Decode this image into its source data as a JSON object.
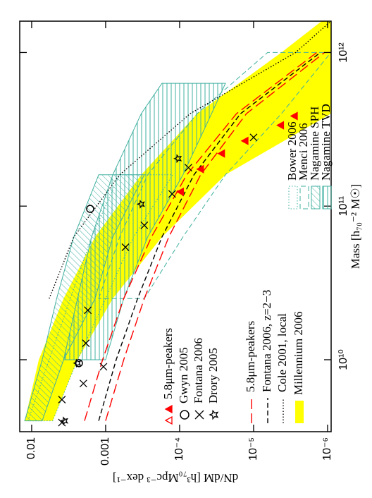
{
  "chart_data": {
    "type": "scatter",
    "xlabel": "Mass [h₇₀⁻² M☉]",
    "ylabel": "dN/dM [h³₇₀Mpc⁻³ dex⁻¹]",
    "xscale": "log",
    "yscale": "log",
    "xlim": [
      3400000000.0,
      1600000000000.0
    ],
    "ylim": [
      8.95e-07,
      0.0145
    ],
    "xticks": [
      {
        "value": 10000000000.0,
        "label": "10¹⁰"
      },
      {
        "value": 100000000000.0,
        "label": "10¹¹"
      },
      {
        "value": 1000000000000.0,
        "label": "10¹²"
      }
    ],
    "yticks": [
      0.01,
      0.001,
      {
        "value": 0.0001,
        "label": "10⁻⁴"
      },
      {
        "value": 1e-05,
        "label": "10⁻⁵"
      },
      {
        "value": 1e-06,
        "label": "10⁻⁶"
      }
    ],
    "series": [
      {
        "name": "5.8μm-peakers",
        "type": "scatter",
        "marker": "triangle",
        "color": "#ff0000",
        "x": [
          124000000000.0,
          174000000000.0,
          220000000000.0,
          266000000000.0,
          336000000000.0,
          386000000000.0
        ],
        "values": [
          9.7e-05,
          5.2e-05,
          2.7e-05,
          1.3e-05,
          4.3e-06,
          2.8e-06
        ]
      },
      {
        "name": "Gwyn 2005",
        "type": "scatter",
        "marker": "circle",
        "color": "#000000",
        "x": [
          9500000000.0,
          96000000000.0
        ],
        "values": [
          0.0023,
          0.00162
        ]
      },
      {
        "name": "Fontana 2006",
        "type": "scatter",
        "marker": "cross",
        "color": "#000000",
        "x": [
          3900000000.0,
          5500000000.0,
          7000000000.0,
          9000000000.0,
          12800000000.0,
          21000000000.0,
          54000000000.0,
          75000000000.0,
          120000000000.0,
          178000000000.0,
          280000000000.0
        ],
        "values": [
          0.0039,
          0.0039,
          0.002,
          0.00107,
          0.00185,
          0.00174,
          0.00054,
          0.0003,
          0.000126,
          7.6e-05,
          1e-05
        ]
      },
      {
        "name": "Drory 2005",
        "type": "scatter",
        "marker": "star",
        "color": "#000000",
        "x": [
          4000000000.0,
          9500000000.0,
          103000000000.0,
          204000000000.0
        ],
        "values": [
          0.0036,
          0.0024,
          0.00033,
          0.000105
        ]
      },
      {
        "name": "5.8μm-peakers",
        "type": "line",
        "dash": "long",
        "color": "#ff0000",
        "x": [
          4000000000.0,
          10000000000.0,
          25000000000.0,
          63000000000.0,
          160000000000.0,
          400000000000.0,
          1000000000000.0
        ],
        "values": [
          0.00193,
          0.0011,
          0.00057,
          0.00024,
          8e-05,
          1.7e-05,
          1.4e-06
        ]
      },
      {
        "type": "line",
        "dash": "long",
        "color": "#ff0000",
        "x": [
          4000000000.0,
          10000000000.0,
          25000000000.0,
          63000000000.0,
          160000000000.0,
          400000000000.0,
          1000000000000.0
        ],
        "values": [
          0.001,
          0.00057,
          0.0003,
          0.00014,
          5.2e-05,
          1.25e-05,
          1.1e-06
        ]
      },
      {
        "name": "Fontana 2006, z=2−3",
        "type": "line",
        "dash": "dashed",
        "color": "#000000",
        "x": [
          4000000000.0,
          10000000000.0,
          25000000000.0,
          63000000000.0,
          160000000000.0,
          400000000000.0,
          1000000000000.0
        ],
        "values": [
          0.00124,
          0.00072,
          0.00037,
          0.000173,
          6.4e-05,
          1.5e-05,
          1.25e-06
        ]
      },
      {
        "name": "Cole 2001, local",
        "type": "line",
        "dash": "dotted",
        "color": "#000000",
        "x": [
          25000000000.0,
          63000000000.0,
          160000000000.0,
          400000000000.0,
          1000000000000.0,
          1600000000000.0
        ],
        "values": [
          0.0058,
          0.0027,
          0.000645,
          7.2e-05,
          2.7e-06,
          9e-07
        ]
      },
      {
        "name": "Millennium 2006",
        "type": "band",
        "fill": "#ffff00",
        "color": "#ffff00",
        "x": [
          4000000000.0,
          10000000000.0,
          25000000000.0,
          63000000000.0,
          160000000000.0,
          400000000000.0,
          1000000000000.0,
          1600000000000.0
        ],
        "low": [
          0.0052,
          0.0024,
          0.0008,
          0.000173,
          2.4e-05,
          9e-07,
          9e-07,
          9e-07
        ],
        "high": [
          0.0124,
          0.008,
          0.0037,
          0.00139,
          0.00033,
          5.8e-05,
          4.2e-06,
          1.2e-06
        ]
      },
      {
        "name": "Bower 2006",
        "type": "band",
        "dash": "dotted",
        "color": "#40b0a0",
        "x": [
          4000000000.0,
          10000000000.0,
          25000000000.0,
          63000000000.0,
          160000000000.0
        ],
        "low": [
          0.0052,
          0.0024,
          0.001,
          0.00042,
          0.000124
        ],
        "high": [
          0.0112,
          0.0058,
          0.003,
          0.00155,
          0.000645
        ]
      },
      {
        "name": "Menci 2006",
        "type": "band",
        "dash": "dashed",
        "color": "#40b0a0",
        "x": [
          25000000000.0,
          63000000000.0,
          160000000000.0,
          400000000000.0,
          1000000000000.0
        ],
        "low": [
          0.0003,
          9e-05,
          2.4e-05,
          4.2e-06,
          9e-07
        ],
        "high": [
          0.00124,
          0.000645,
          0.00027,
          5.8e-05,
          6.45e-06
        ]
      },
      {
        "name": "Nagamine SPH",
        "type": "band",
        "hatch": "diagonal",
        "color": "#40b0a0",
        "x": [
          4000000000.0,
          10000000000.0,
          25000000000.0,
          63000000000.0,
          160000000000.0
        ],
        "low": [
          0.0072,
          0.0037,
          0.00139,
          0.0008,
          0.0003
        ],
        "high": [
          0.0124,
          0.0072,
          0.0046,
          0.0027,
          0.00124
        ]
      },
      {
        "name": "Nagamine TVD",
        "type": "band",
        "hatch": "horizontal",
        "color": "#40b0a0",
        "x": [
          10000000000.0,
          25000000000.0,
          63000000000.0,
          160000000000.0,
          400000000000.0,
          630000000000.0
        ],
        "low": [
          0.001,
          0.00057,
          0.00027,
          9e-05,
          3.7e-05,
          2.4e-05
        ],
        "high": [
          0.0037,
          0.0024,
          0.00155,
          0.0008,
          0.00033,
          0.000173
        ]
      }
    ]
  }
}
